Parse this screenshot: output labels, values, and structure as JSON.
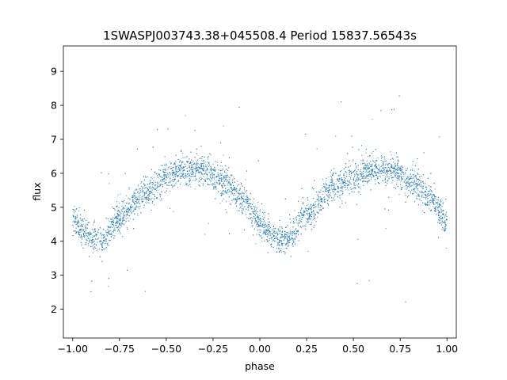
{
  "chart_data": {
    "type": "scatter",
    "title": "1SWASPJ003743.38+045508.4 Period 15837.56543s",
    "xlabel": "phase",
    "ylabel": "flux",
    "xlim": [
      -1.05,
      1.05
    ],
    "ylim": [
      1.15,
      9.75
    ],
    "xticks": [
      -1.0,
      -0.75,
      -0.5,
      -0.25,
      0.0,
      0.25,
      0.5,
      0.75,
      1.0
    ],
    "xtick_labels": [
      "−1.00",
      "−0.75",
      "−0.50",
      "−0.25",
      "0.00",
      "0.25",
      "0.50",
      "0.75",
      "1.00"
    ],
    "yticks": [
      2,
      3,
      4,
      5,
      6,
      7,
      8,
      9
    ],
    "ytick_labels": [
      "2",
      "3",
      "4",
      "5",
      "6",
      "7",
      "8",
      "9"
    ],
    "grid": false,
    "marker_color": "#1f77b4",
    "series": [
      {
        "curve_phase": [
          -1.0,
          -0.9,
          -0.85,
          -0.75,
          -0.6,
          -0.5,
          -0.4,
          -0.3,
          -0.2,
          -0.1,
          0.0,
          0.05,
          0.1,
          0.15,
          0.25,
          0.4,
          0.5,
          0.6,
          0.7,
          0.8,
          0.9,
          1.0
        ],
        "curve_flux": [
          4.6,
          4.1,
          4.0,
          4.7,
          5.5,
          5.9,
          6.1,
          6.1,
          5.8,
          5.3,
          4.6,
          4.2,
          4.0,
          4.1,
          4.8,
          5.6,
          5.9,
          6.1,
          6.1,
          5.8,
          5.3,
          4.6
        ],
        "scatter_sigma": 0.22
      }
    ]
  }
}
